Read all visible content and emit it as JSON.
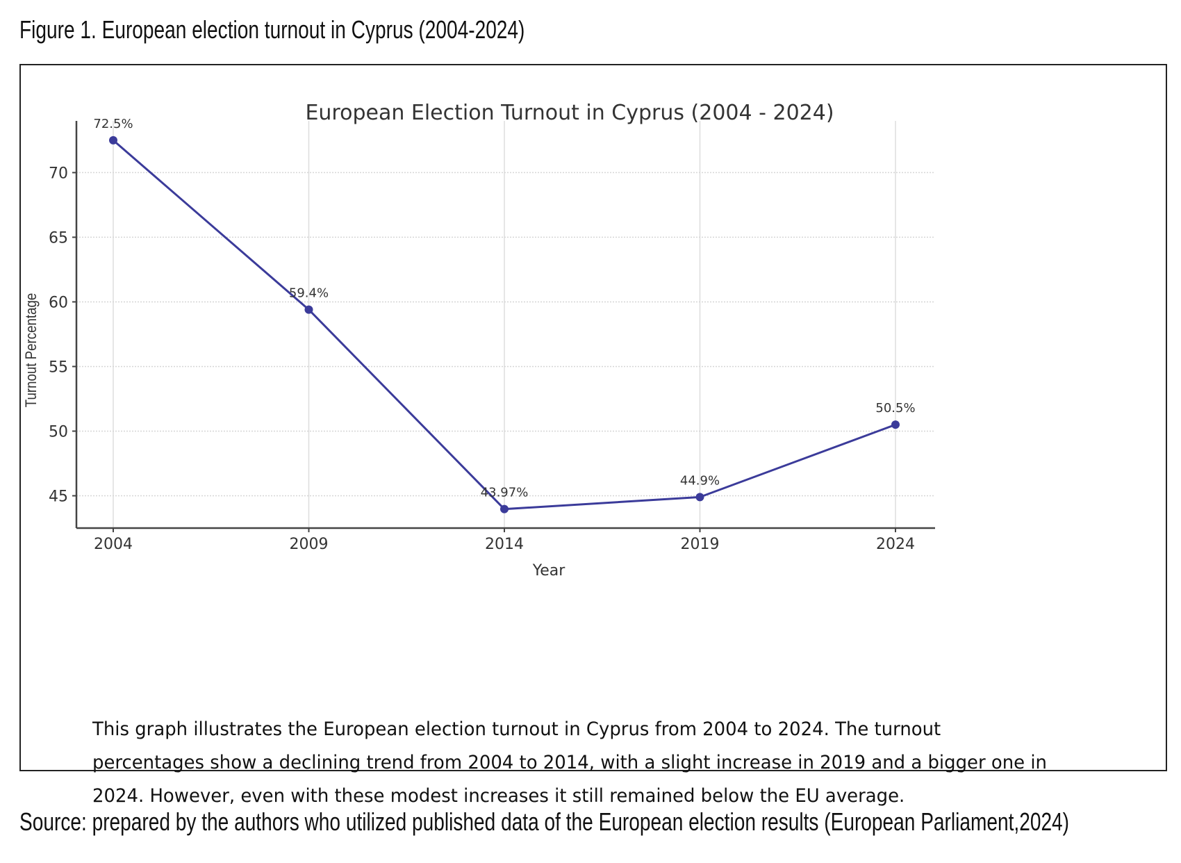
{
  "figure": {
    "caption": "Figure 1. European election turnout in Cyprus (2004-2024)",
    "description": "This graph illustrates the European election turnout in Cyprus from 2004 to 2024. The turnout percentages show a declining trend from 2004 to 2014, with a slight increase in 2019 and a bigger one in 2024. However, even with these modest increases it still remained below the EU average.",
    "source": "Source: prepared by the authors who utilized published data of the European election results (European Parliament,2024)"
  },
  "chart_data": {
    "type": "line",
    "title": "European Election Turnout in Cyprus (2004 - 2024)",
    "xlabel": "Year",
    "ylabel": "Turnout Percentage",
    "categories": [
      "2004",
      "2009",
      "2014",
      "2019",
      "2024"
    ],
    "values": [
      72.5,
      59.4,
      43.97,
      44.9,
      50.5
    ],
    "point_labels": [
      "72.5%",
      "59.4%",
      "43.97%",
      "44.9%",
      "50.5%"
    ],
    "yticks": [
      45,
      50,
      55,
      60,
      65,
      70
    ],
    "ylim": [
      42.5,
      74
    ],
    "grid": true,
    "line_color": "#3b3b9a"
  }
}
